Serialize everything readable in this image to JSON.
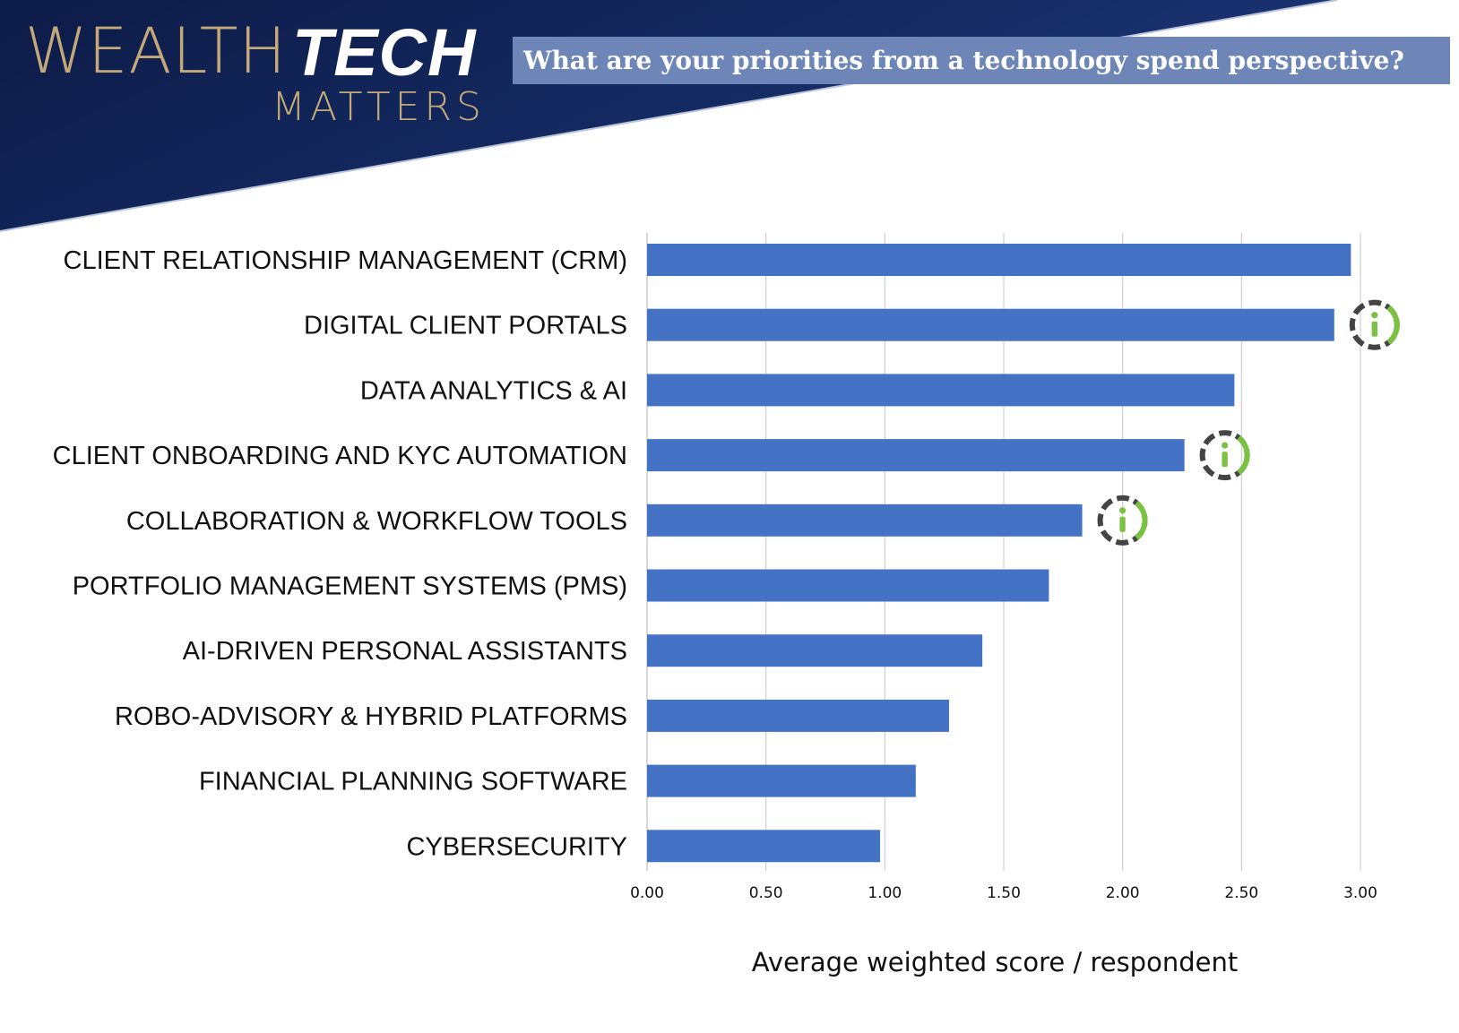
{
  "header": {
    "logo_primary": "WEALTH",
    "logo_accent": "TECH",
    "logo_secondary": "MATTERS",
    "question": "What are your priorities from a technology spend perspective?"
  },
  "colors": {
    "banner": "#0f1d4b",
    "question_bg": "#6e86b7",
    "bar": "#4472c4",
    "logo_gold": "#c3a878",
    "info_icon_ring": "#444444",
    "info_icon_glyph": "#7cc242"
  },
  "chart_data": {
    "type": "bar",
    "orientation": "horizontal",
    "categories": [
      "CLIENT RELATIONSHIP MANAGEMENT (CRM)",
      "DIGITAL CLIENT PORTALS",
      "DATA ANALYTICS & AI",
      "CLIENT ONBOARDING AND KYC AUTOMATION",
      "COLLABORATION & WORKFLOW TOOLS",
      "PORTFOLIO MANAGEMENT SYSTEMS (PMS)",
      "AI-DRIVEN PERSONAL ASSISTANTS",
      "ROBO-ADVISORY & HYBRID PLATFORMS",
      "FINANCIAL PLANNING SOFTWARE",
      "CYBERSECURITY"
    ],
    "values": [
      2.96,
      2.89,
      2.47,
      2.26,
      1.83,
      1.69,
      1.41,
      1.27,
      1.13,
      0.98
    ],
    "info_icons": [
      false,
      true,
      false,
      true,
      true,
      false,
      false,
      false,
      false,
      false
    ],
    "xlabel": "Average weighted score / respondent",
    "ylabel": "",
    "xlim": [
      0,
      3
    ],
    "ticks": [
      "0.00",
      "0.50",
      "1.00",
      "1.50",
      "2.00",
      "2.50",
      "3.00"
    ],
    "grid": true
  }
}
